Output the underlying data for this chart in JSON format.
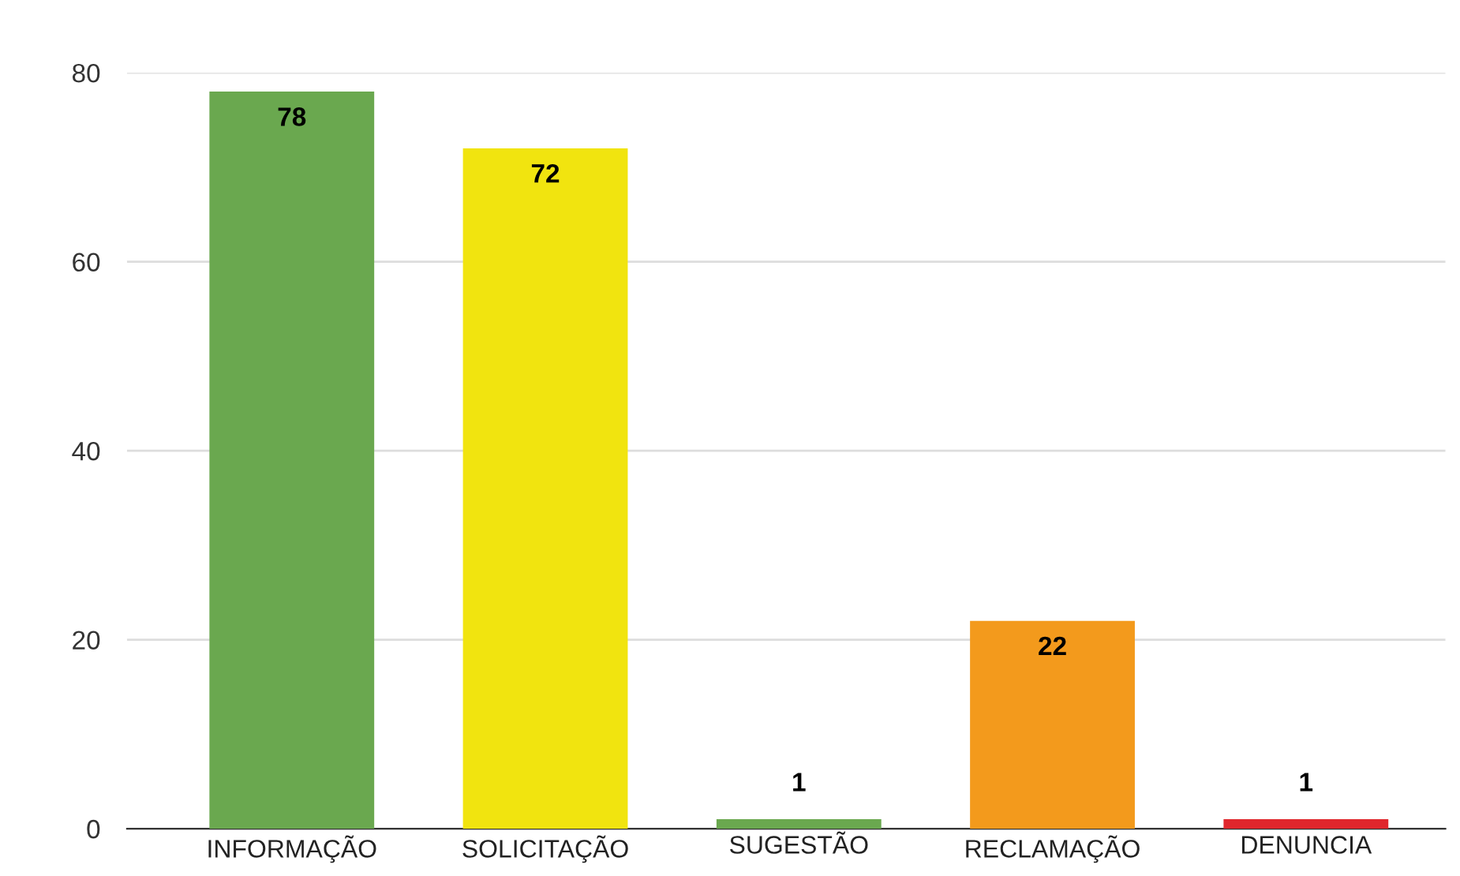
{
  "chart_data": {
    "type": "bar",
    "categories": [
      "INFORMAÇÃO",
      "SOLICITAÇÃO",
      "SUGESTÃO",
      "RECLAMAÇÃO",
      "DENUNCIA"
    ],
    "values": [
      78,
      72,
      1,
      22,
      1
    ],
    "colors": [
      "#6aa84f",
      "#f1e40f",
      "#6aa84f",
      "#f39a1c",
      "#e0262c"
    ],
    "ylim": [
      0,
      80
    ],
    "yticks": [
      0,
      20,
      40,
      60,
      80
    ],
    "grid": "y",
    "data_labels": true
  }
}
